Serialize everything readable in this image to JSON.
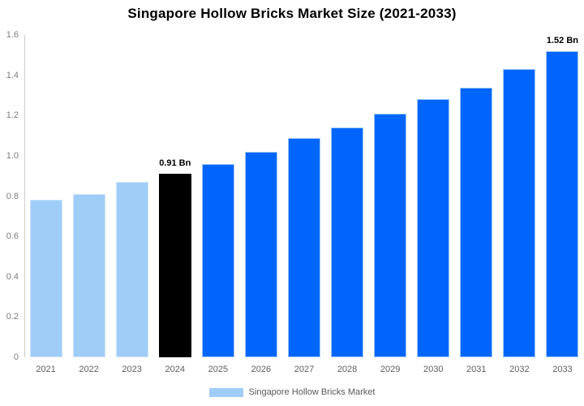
{
  "chart_data": {
    "type": "bar",
    "title": "Singapore Hollow Bricks Market Size (2021-2033)",
    "series_name": "Singapore Hollow Bricks Market",
    "categories": [
      "2021",
      "2022",
      "2023",
      "2024",
      "2025",
      "2026",
      "2027",
      "2028",
      "2029",
      "2030",
      "2031",
      "2032",
      "2033"
    ],
    "values": [
      0.78,
      0.81,
      0.87,
      0.91,
      0.96,
      1.02,
      1.09,
      1.14,
      1.21,
      1.28,
      1.34,
      1.43,
      1.52
    ],
    "unit": "Bn",
    "xlabel": "",
    "ylabel": "",
    "ylim": [
      0,
      1.6
    ],
    "y_tick_labels": [
      "0",
      "0.2",
      "0.4",
      "0.6",
      "0.8",
      "1.0",
      "1.2",
      "1.4",
      "1.6"
    ],
    "grid": false,
    "legend_position": "bottom",
    "point_styles": [
      "historical",
      "historical",
      "historical",
      "base",
      "forecast",
      "forecast",
      "forecast",
      "forecast",
      "forecast",
      "forecast",
      "forecast",
      "forecast",
      "forecast"
    ],
    "colors": {
      "historical": "#9fcdf8",
      "base": "#000000",
      "forecast": "#0066fb"
    },
    "annotations": [
      {
        "index": 3,
        "text": "0.91 Bn"
      },
      {
        "index": 12,
        "text": "1.52 Bn"
      }
    ]
  }
}
